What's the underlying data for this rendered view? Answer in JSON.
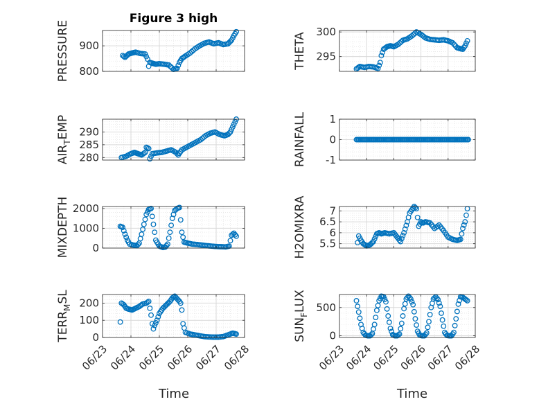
{
  "figure": {
    "title": "Figure 3 high",
    "xlabel": "Time"
  },
  "chart_data": [
    {
      "type": "scatter",
      "title": "Figure 3 high",
      "ylabel": "PRESSURE",
      "ylabel_sub": "",
      "xlim": [
        "06/23",
        "06/28"
      ],
      "ylim": [
        800,
        960
      ],
      "yticks": [
        800,
        900
      ],
      "ytick_labels": [
        "800",
        "900"
      ],
      "xtick_labels": [],
      "grid": true,
      "x": [
        "06/23 17:00",
        "06/23 19:00",
        "06/23 22:00",
        "06/24 01:00",
        "06/24 04:00",
        "06/24 08:00",
        "06/24 12:00",
        "06/24 14:00",
        "06/24 15:00",
        "06/24 16:00",
        "06/24 18:00",
        "06/24 21:00",
        "06/25 00:00",
        "06/25 04:00",
        "06/25 08:00",
        "06/25 12:00",
        "06/25 15:00",
        "06/25 17:00",
        "06/25 19:00",
        "06/25 22:00",
        "06/26 02:00",
        "06/26 06:00",
        "06/26 10:00",
        "06/26 14:00",
        "06/26 18:00",
        "06/26 22:00",
        "06/27 02:00",
        "06/27 06:00",
        "06/27 10:00",
        "06/27 13:00",
        "06/27 15:00",
        "06/27 17:00"
      ],
      "y": [
        862,
        855,
        868,
        872,
        875,
        870,
        868,
        848,
        820,
        835,
        832,
        828,
        830,
        828,
        825,
        808,
        812,
        835,
        850,
        860,
        872,
        888,
        900,
        910,
        915,
        908,
        912,
        905,
        908,
        922,
        940,
        955
      ]
    },
    {
      "type": "scatter",
      "title": "",
      "ylabel": "THETA",
      "ylabel_sub": "",
      "xlim": [
        "06/23",
        "06/28"
      ],
      "ylim": [
        292,
        300.3
      ],
      "yticks": [
        295,
        300
      ],
      "ytick_labels": [
        "295",
        "300"
      ],
      "xtick_labels": [],
      "grid": true,
      "x": [
        "06/23 15:00",
        "06/23 18:00",
        "06/23 22:00",
        "06/24 02:00",
        "06/24 06:00",
        "06/24 10:00",
        "06/24 12:00",
        "06/24 13:00",
        "06/24 15:00",
        "06/24 18:00",
        "06/24 21:00",
        "06/25 00:00",
        "06/25 04:00",
        "06/25 08:00",
        "06/25 12:00",
        "06/25 16:00",
        "06/25 20:00",
        "06/26 00:00",
        "06/26 04:00",
        "06/26 08:00",
        "06/26 12:00",
        "06/26 16:00",
        "06/26 20:00",
        "06/27 00:00",
        "06/27 04:00",
        "06/27 08:00",
        "06/27 11:00",
        "06/27 13:00",
        "06/27 15:00",
        "06/27 17:00"
      ],
      "y": [
        292.5,
        293.0,
        292.8,
        293.0,
        292.9,
        292.6,
        293.8,
        295.2,
        296.5,
        297.0,
        297.2,
        297.0,
        297.5,
        298.3,
        298.6,
        299.2,
        300.0,
        299.5,
        298.8,
        298.5,
        298.4,
        298.3,
        298.4,
        298.2,
        297.8,
        296.8,
        296.6,
        296.5,
        297.2,
        298.2
      ]
    },
    {
      "type": "scatter",
      "title": "",
      "ylabel": "AIR",
      "ylabel_sub": "T",
      "ylabel_suffix": "EMP",
      "xlim": [
        "06/23",
        "06/28"
      ],
      "ylim": [
        279,
        295
      ],
      "yticks": [
        280,
        285,
        290
      ],
      "ytick_labels": [
        "280",
        "285",
        "290"
      ],
      "xtick_labels": [],
      "grid": true,
      "x": [
        "06/23 16:00",
        "06/23 20:00",
        "06/24 00:00",
        "06/24 03:00",
        "06/24 06:00",
        "06/24 09:00",
        "06/24 12:00",
        "06/24 13:00",
        "06/24 15:00",
        "06/24 16:00",
        "06/24 18:00",
        "06/24 22:00",
        "06/25 02:00",
        "06/25 06:00",
        "06/25 10:00",
        "06/25 14:00",
        "06/25 16:00",
        "06/25 19:00",
        "06/25 23:00",
        "06/26 03:00",
        "06/26 07:00",
        "06/26 11:00",
        "06/26 15:00",
        "06/26 19:00",
        "06/26 23:00",
        "06/27 03:00",
        "06/27 07:00",
        "06/27 10:00",
        "06/27 12:00",
        "06/27 14:00",
        "06/27 16:00",
        "06/27 17:00"
      ],
      "y": [
        280,
        280.5,
        281.5,
        282,
        281.5,
        281,
        282,
        284,
        283.5,
        279.5,
        281.5,
        281.8,
        282,
        282.5,
        283,
        282,
        281,
        283,
        284,
        285,
        286,
        287,
        288.5,
        289.5,
        290,
        289,
        288.5,
        289,
        290,
        292,
        294,
        295
      ]
    },
    {
      "type": "scatter",
      "title": "",
      "ylabel": "RAINFALL",
      "ylabel_sub": "",
      "xlim": [
        "06/23",
        "06/28"
      ],
      "ylim": [
        -1,
        1
      ],
      "yticks": [
        -1,
        0,
        1
      ],
      "ytick_labels": [
        "-1",
        "0",
        "1"
      ],
      "xtick_labels": [],
      "grid": true,
      "x_range": [
        "06/23 15:00",
        "06/27 18:00"
      ],
      "constant_value": 0
    },
    {
      "type": "scatter",
      "title": "",
      "ylabel": "MIXDEPTH",
      "ylabel_sub": "",
      "xlim": [
        "06/23",
        "06/28"
      ],
      "ylim": [
        0,
        2100
      ],
      "yticks": [
        0,
        1000,
        2000
      ],
      "ytick_labels": [
        "0",
        "1000",
        "2000"
      ],
      "xtick_labels": [],
      "grid": true,
      "x": [
        "06/23 15:00",
        "06/23 17:00",
        "06/23 19:00",
        "06/23 21:00",
        "06/23 23:00",
        "06/24 02:00",
        "06/24 05:00",
        "06/24 07:00",
        "06/24 09:00",
        "06/24 11:00",
        "06/24 13:00",
        "06/24 15:00",
        "06/24 17:00",
        "06/24 19:00",
        "06/24 21:00",
        "06/25 00:00",
        "06/25 03:00",
        "06/25 05:00",
        "06/25 07:00",
        "06/25 09:00",
        "06/25 11:00",
        "06/25 13:00",
        "06/25 15:00",
        "06/25 17:00",
        "06/25 19:00",
        "06/25 21:00",
        "06/26 00:00",
        "06/26 04:00",
        "06/26 08:00",
        "06/26 12:00",
        "06/26 16:00",
        "06/26 20:00",
        "06/27 00:00",
        "06/27 04:00",
        "06/27 08:00",
        "06/27 11:00",
        "06/27 13:00",
        "06/27 15:00",
        "06/27 17:00"
      ],
      "y": [
        1100,
        1050,
        700,
        400,
        200,
        150,
        120,
        250,
        700,
        1200,
        1700,
        1950,
        2000,
        1200,
        400,
        100,
        30,
        50,
        200,
        800,
        1500,
        1900,
        2000,
        2050,
        800,
        300,
        250,
        200,
        180,
        150,
        120,
        100,
        80,
        70,
        60,
        100,
        650,
        750,
        600
      ]
    },
    {
      "type": "scatter",
      "title": "",
      "ylabel": "H2OMIXRA",
      "ylabel_sub": "",
      "xlim": [
        "06/23",
        "06/28"
      ],
      "ylim": [
        5.3,
        7.2
      ],
      "yticks": [
        5.5,
        6,
        6.5,
        7
      ],
      "ytick_labels": [
        "5.5",
        "6",
        "6.5",
        "7"
      ],
      "xtick_labels": [],
      "grid": true,
      "x": [
        "06/23 16:00",
        "06/23 17:00",
        "06/23 19:00",
        "06/23 21:00",
        "06/24 00:00",
        "06/24 03:00",
        "06/24 06:00",
        "06/24 09:00",
        "06/24 11:00",
        "06/24 13:00",
        "06/24 16:00",
        "06/24 20:00",
        "06/25 00:00",
        "06/25 03:00",
        "06/25 06:00",
        "06/25 09:00",
        "06/25 12:00",
        "06/25 14:00",
        "06/25 16:00",
        "06/25 18:00",
        "06/25 20:00",
        "06/25 22:00",
        "06/26 00:00",
        "06/26 02:00",
        "06/26 04:00",
        "06/26 08:00",
        "06/26 12:00",
        "06/26 16:00",
        "06/26 20:00",
        "06/27 00:00",
        "06/27 04:00",
        "06/27 08:00",
        "06/27 11:00",
        "06/27 13:00",
        "06/27 15:00",
        "06/27 17:00"
      ],
      "y": [
        5.55,
        5.85,
        5.65,
        5.5,
        5.4,
        5.45,
        5.6,
        5.95,
        6.0,
        5.95,
        6.0,
        5.95,
        6.0,
        5.8,
        5.6,
        6.0,
        6.5,
        6.9,
        7.05,
        7.2,
        7.1,
        6.3,
        6.5,
        6.45,
        6.5,
        6.45,
        6.2,
        6.35,
        6.1,
        5.8,
        5.7,
        5.65,
        5.7,
        6.2,
        6.5,
        7.1
      ]
    },
    {
      "type": "scatter",
      "title": "",
      "ylabel": "TERR",
      "ylabel_sub": "M",
      "ylabel_suffix": "SL",
      "xlim": [
        "06/23",
        "06/28"
      ],
      "ylim": [
        0,
        250
      ],
      "yticks": [
        0,
        100,
        200
      ],
      "ytick_labels": [
        "0",
        "100",
        "200"
      ],
      "xtick_labels": [
        "06/23",
        "06/24",
        "06/25",
        "06/26",
        "06/27",
        "06/28"
      ],
      "grid": true,
      "x": [
        "06/23 15:00",
        "06/23 16:00",
        "06/23 18:00",
        "06/23 20:00",
        "06/23 22:00",
        "06/24 01:00",
        "06/24 04:00",
        "06/24 07:00",
        "06/24 10:00",
        "06/24 13:00",
        "06/24 15:00",
        "06/24 17:00",
        "06/24 18:00",
        "06/24 19:00",
        "06/24 20:00",
        "06/24 22:00",
        "06/25 00:00",
        "06/25 03:00",
        "06/25 06:00",
        "06/25 09:00",
        "06/25 11:00",
        "06/25 13:00",
        "06/25 15:00",
        "06/25 17:00",
        "06/25 18:00",
        "06/25 19:00",
        "06/25 20:00",
        "06/25 22:00",
        "06/26 02:00",
        "06/26 06:00",
        "06/26 10:00",
        "06/26 14:00",
        "06/26 18:00",
        "06/26 22:00",
        "06/27 02:00",
        "06/27 06:00",
        "06/27 10:00",
        "06/27 14:00",
        "06/27 17:00"
      ],
      "y": [
        90,
        200,
        190,
        170,
        165,
        160,
        170,
        180,
        195,
        200,
        210,
        130,
        80,
        50,
        70,
        100,
        140,
        170,
        190,
        210,
        230,
        240,
        225,
        210,
        200,
        160,
        80,
        30,
        20,
        15,
        10,
        5,
        3,
        2,
        2,
        5,
        15,
        25,
        20
      ]
    },
    {
      "type": "scatter",
      "title": "",
      "ylabel": "SUN",
      "ylabel_sub": "F",
      "ylabel_suffix": "LUX",
      "xlim": [
        "06/23",
        "06/28"
      ],
      "ylim": [
        -30,
        730
      ],
      "yticks": [
        0,
        500
      ],
      "ytick_labels": [
        "0",
        "500"
      ],
      "xtick_labels": [
        "06/23",
        "06/24",
        "06/25",
        "06/26",
        "06/27",
        "06/28"
      ],
      "grid": true,
      "x": [
        "06/23 15:00",
        "06/23 17:00",
        "06/23 19:00",
        "06/23 21:00",
        "06/23 23:00",
        "06/24 01:00",
        "06/24 03:00",
        "06/24 05:00",
        "06/24 07:00",
        "06/24 09:00",
        "06/24 11:00",
        "06/24 13:00",
        "06/24 15:00",
        "06/24 17:00",
        "06/24 19:00",
        "06/24 21:00",
        "06/24 23:00",
        "06/25 01:00",
        "06/25 03:00",
        "06/25 05:00",
        "06/25 07:00",
        "06/25 09:00",
        "06/25 11:00",
        "06/25 13:00",
        "06/25 15:00",
        "06/25 17:00",
        "06/25 19:00",
        "06/25 21:00",
        "06/25 23:00",
        "06/26 01:00",
        "06/26 03:00",
        "06/26 05:00",
        "06/26 07:00",
        "06/26 09:00",
        "06/26 11:00",
        "06/26 13:00",
        "06/26 15:00",
        "06/26 17:00",
        "06/26 19:00",
        "06/26 21:00",
        "06/26 23:00",
        "06/27 01:00",
        "06/27 03:00",
        "06/27 05:00",
        "06/27 07:00",
        "06/27 09:00",
        "06/27 11:00",
        "06/27 13:00",
        "06/27 15:00",
        "06/27 17:00"
      ],
      "y": [
        620,
        420,
        200,
        60,
        10,
        0,
        0,
        40,
        200,
        450,
        620,
        700,
        690,
        600,
        350,
        130,
        20,
        0,
        0,
        30,
        220,
        480,
        650,
        700,
        650,
        550,
        300,
        80,
        10,
        0,
        0,
        50,
        250,
        500,
        650,
        690,
        640,
        520,
        280,
        60,
        5,
        0,
        0,
        60,
        300,
        560,
        690,
        680,
        650,
        620
      ]
    }
  ]
}
